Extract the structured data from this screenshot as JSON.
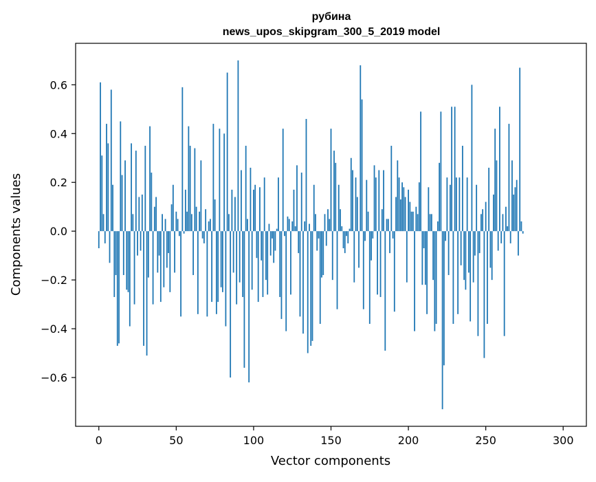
{
  "chart_data": {
    "type": "bar",
    "title_lines": [
      "рубина",
      "news_upos_skipgram_300_5_2019 model"
    ],
    "xlabel": "Vector components",
    "ylabel": "Components values",
    "xlim": [
      -15,
      315
    ],
    "ylim": [
      -0.8,
      0.77
    ],
    "xticks": [
      0,
      50,
      100,
      150,
      200,
      250,
      300
    ],
    "yticks": [
      -0.6,
      -0.4,
      -0.2,
      0.0,
      0.2,
      0.4,
      0.6
    ],
    "ytick_labels": [
      "−0.6",
      "−0.4",
      "−0.2",
      "0.0",
      "0.2",
      "0.4",
      "0.6"
    ],
    "grid": false,
    "bar_color": "#1f77b4",
    "x_start": 0,
    "values": [
      -0.07,
      0.61,
      0.31,
      0.07,
      -0.05,
      0.44,
      0.36,
      -0.13,
      0.58,
      0.19,
      -0.27,
      -0.18,
      -0.47,
      -0.46,
      0.45,
      0.23,
      -0.18,
      0.29,
      -0.24,
      -0.25,
      -0.39,
      0.36,
      0.07,
      -0.3,
      0.33,
      -0.1,
      0.14,
      -0.08,
      0.15,
      -0.47,
      0.35,
      -0.51,
      -0.19,
      0.43,
      0.24,
      -0.3,
      0.1,
      0.14,
      -0.17,
      -0.1,
      -0.29,
      0.07,
      -0.23,
      0.05,
      -0.15,
      -0.09,
      -0.25,
      0.11,
      0.19,
      -0.17,
      0.08,
      0.05,
      -0.02,
      -0.35,
      0.59,
      -0.01,
      0.17,
      0.08,
      0.43,
      0.35,
      0.07,
      -0.18,
      0.34,
      0.1,
      -0.34,
      0.08,
      0.29,
      -0.03,
      -0.05,
      0.09,
      -0.35,
      0.04,
      0.05,
      -0.29,
      0.44,
      0.13,
      -0.34,
      -0.29,
      0.42,
      -0.23,
      -0.25,
      0.4,
      -0.39,
      0.65,
      0.07,
      -0.6,
      0.17,
      -0.17,
      0.14,
      -0.3,
      0.7,
      -0.21,
      0.25,
      -0.27,
      -0.56,
      0.35,
      0.05,
      -0.62,
      0.26,
      -0.24,
      0.17,
      0.19,
      -0.11,
      -0.29,
      0.18,
      -0.12,
      -0.27,
      0.22,
      -0.2,
      -0.26,
      0.03,
      -0.1,
      -0.03,
      -0.13,
      -0.08,
      0.01,
      0.22,
      -0.27,
      -0.36,
      0.42,
      -0.02,
      -0.41,
      0.06,
      0.05,
      -0.26,
      0.04,
      0.17,
      0.02,
      0.27,
      -0.09,
      -0.35,
      0.24,
      -0.42,
      0.04,
      0.46,
      -0.5,
      0.03,
      -0.47,
      -0.45,
      0.19,
      0.07,
      -0.08,
      -0.03,
      -0.38,
      -0.19,
      -0.18,
      0.07,
      -0.06,
      0.09,
      0.05,
      0.42,
      -0.2,
      0.33,
      0.28,
      -0.32,
      0.19,
      0.09,
      0.02,
      -0.07,
      -0.09,
      -0.02,
      -0.05,
      0.01,
      0.3,
      0.25,
      -0.21,
      0.22,
      0.14,
      -0.15,
      0.68,
      0.54,
      -0.32,
      -0.04,
      0.21,
      0.08,
      -0.38,
      -0.12,
      -0.03,
      0.27,
      0.22,
      -0.26,
      0.25,
      -0.27,
      0.09,
      0.25,
      -0.49,
      0.05,
      0.05,
      -0.09,
      0.35,
      -0.03,
      -0.33,
      0.14,
      0.29,
      0.22,
      0.13,
      0.2,
      0.18,
      0.14,
      -0.21,
      0.17,
      0.12,
      0.08,
      0.08,
      -0.41,
      0.1,
      0.07,
      0.2,
      0.49,
      -0.22,
      -0.07,
      -0.22,
      -0.34,
      0.18,
      0.07,
      0.07,
      -0.2,
      -0.41,
      -0.38,
      0.04,
      0.28,
      0.49,
      -0.73,
      -0.55,
      -0.04,
      0.22,
      -0.18,
      0.19,
      0.51,
      -0.38,
      0.51,
      0.22,
      -0.34,
      0.22,
      -0.14,
      0.35,
      -0.2,
      -0.24,
      0.22,
      -0.17,
      -0.37,
      0.6,
      -0.21,
      -0.1,
      0.19,
      -0.43,
      -0.09,
      0.07,
      0.09,
      -0.52,
      0.12,
      -0.38,
      0.26,
      -0.15,
      -0.2,
      0.15,
      0.42,
      0.29,
      -0.08,
      0.51,
      -0.05,
      0.07,
      -0.43,
      0.1,
      0.02,
      0.44,
      -0.05,
      0.29,
      0.15,
      0.18,
      0.21,
      -0.1,
      0.67,
      0.04,
      -0.01
    ]
  }
}
